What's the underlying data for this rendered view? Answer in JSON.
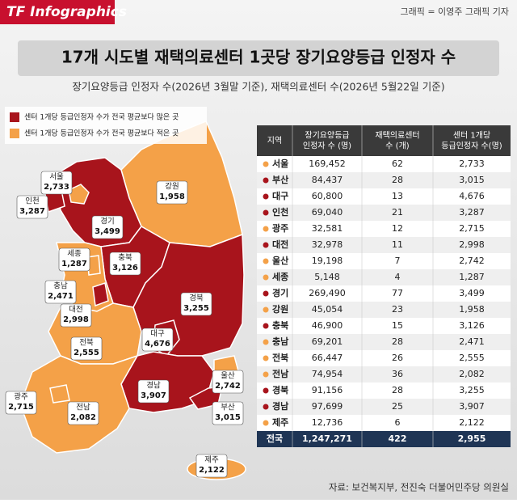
{
  "header": {
    "logo": "TF Infographics",
    "credit": "그래픽 = 이영주 그래픽 기자",
    "title": "17개 시도별 재택의료센터 1곳당 장기요양등급 인정자 수",
    "subtitle": "장기요양등급 인정자 수(2026년 3월말 기준), 재택의료센터 수(2026년 5월22일 기준)"
  },
  "legend": [
    {
      "label": "센터 1개당 등급인정자 수가 전국 평균보다 많은 곳",
      "color": "#a8141c"
    },
    {
      "label": "센터 1개당 등급인정자 수가 전국 평균보다 적은 곳",
      "color": "#f4a148"
    }
  ],
  "table": {
    "headers": [
      [
        "지역"
      ],
      [
        "장기요양등급",
        "인정자 수 (명)"
      ],
      [
        "재택의료센터",
        "수 (개)"
      ],
      [
        "센터 1개당",
        "등급인정자 수(명)"
      ]
    ],
    "rows": [
      {
        "name": "서울",
        "patients": "169,452",
        "centers": "62",
        "per_center": "2,733",
        "color": "#f4a148"
      },
      {
        "name": "부산",
        "patients": "84,437",
        "centers": "28",
        "per_center": "3,015",
        "color": "#a8141c"
      },
      {
        "name": "대구",
        "patients": "60,800",
        "centers": "13",
        "per_center": "4,676",
        "color": "#a8141c"
      },
      {
        "name": "인천",
        "patients": "69,040",
        "centers": "21",
        "per_center": "3,287",
        "color": "#a8141c"
      },
      {
        "name": "광주",
        "patients": "32,581",
        "centers": "12",
        "per_center": "2,715",
        "color": "#f4a148"
      },
      {
        "name": "대전",
        "patients": "32,978",
        "centers": "11",
        "per_center": "2,998",
        "color": "#a8141c"
      },
      {
        "name": "울산",
        "patients": "19,198",
        "centers": "7",
        "per_center": "2,742",
        "color": "#f4a148"
      },
      {
        "name": "세종",
        "patients": "5,148",
        "centers": "4",
        "per_center": "1,287",
        "color": "#f4a148"
      },
      {
        "name": "경기",
        "patients": "269,490",
        "centers": "77",
        "per_center": "3,499",
        "color": "#a8141c"
      },
      {
        "name": "강원",
        "patients": "45,054",
        "centers": "23",
        "per_center": "1,958",
        "color": "#f4a148"
      },
      {
        "name": "충북",
        "patients": "46,900",
        "centers": "15",
        "per_center": "3,126",
        "color": "#a8141c"
      },
      {
        "name": "충남",
        "patients": "69,201",
        "centers": "28",
        "per_center": "2,471",
        "color": "#f4a148"
      },
      {
        "name": "전북",
        "patients": "66,447",
        "centers": "26",
        "per_center": "2,555",
        "color": "#f4a148"
      },
      {
        "name": "전남",
        "patients": "74,954",
        "centers": "36",
        "per_center": "2,082",
        "color": "#f4a148"
      },
      {
        "name": "경북",
        "patients": "91,156",
        "centers": "28",
        "per_center": "3,255",
        "color": "#a8141c"
      },
      {
        "name": "경남",
        "patients": "97,699",
        "centers": "25",
        "per_center": "3,907",
        "color": "#a8141c"
      },
      {
        "name": "제주",
        "patients": "12,736",
        "centers": "6",
        "per_center": "2,122",
        "color": "#f4a148"
      }
    ],
    "total": {
      "name": "전국",
      "patients": "1,247,271",
      "centers": "422",
      "per_center": "2,955"
    }
  },
  "source": "자료: 보건복지부, 전진숙 더불어민주당 의원실"
}
